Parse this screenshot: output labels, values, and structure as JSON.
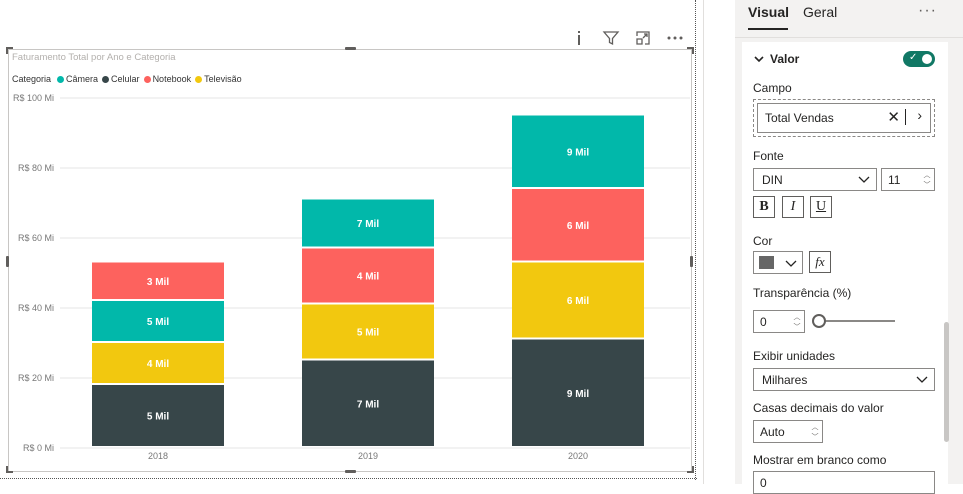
{
  "header_icons": [
    "info-icon",
    "filter-icon",
    "focus-mode-icon",
    "more-options-icon"
  ],
  "chart_data": {
    "type": "bar",
    "stacked": true,
    "title": "Faturamento Total por Ano e Categoria",
    "legend": {
      "title": "Categoria",
      "position": "top-left",
      "items": [
        {
          "name": "Câmera",
          "color": "#01B8AA"
        },
        {
          "name": "Celular",
          "color": "#374649"
        },
        {
          "name": "Notebook",
          "color": "#FD625E"
        },
        {
          "name": "Televisão",
          "color": "#F2C80F"
        }
      ]
    },
    "categories": [
      "2018",
      "2019",
      "2020"
    ],
    "stack_order": [
      "Celular",
      "Televisão",
      "Câmera",
      "Notebook"
    ],
    "series": [
      {
        "name": "Celular",
        "color": "#374649",
        "values": [
          18,
          25,
          31
        ],
        "labels": [
          "5 Mil",
          "7 Mil",
          "9 Mil"
        ]
      },
      {
        "name": "Televisão",
        "color": "#F2C80F",
        "values": [
          12,
          16,
          22
        ],
        "labels": [
          "4 Mil",
          "5 Mil",
          "6 Mil"
        ]
      },
      {
        "name": "Câmera",
        "color": "#01B8AA",
        "values": [
          12,
          14,
          21
        ],
        "labels": [
          "5 Mil",
          "",
          "9 Mil"
        ]
      },
      {
        "name": "Notebook",
        "color": "#FD625E",
        "values": [
          11,
          16,
          21
        ],
        "labels": [
          "3 Mil",
          "4 Mil",
          "6 Mil"
        ]
      }
    ],
    "order_overrides": {
      "2019": [
        "Celular",
        "Televisão",
        "Notebook",
        "Câmera"
      ],
      "2020": [
        "Celular",
        "Televisão",
        "Notebook",
        "Câmera"
      ]
    },
    "extra_labels": {
      "2019": {
        "Câmera": "7 Mil"
      }
    },
    "yticks": [
      "R$ 0 Mi",
      "R$ 20 Mi",
      "R$ 40 Mi",
      "R$ 60 Mi",
      "R$ 80 Mi",
      "R$ 100 Mi"
    ],
    "ylim": [
      0,
      100
    ],
    "grid": true
  },
  "pane": {
    "tabs": [
      {
        "label": "Visual"
      },
      {
        "label": "Geral"
      }
    ],
    "more": "···",
    "section": {
      "title": "Valor",
      "toggle_on": true
    },
    "campo_label": "Campo",
    "campo_value": "Total Vendas",
    "fonte_label": "Fonte",
    "font_family": "DIN",
    "font_size": "11",
    "bold": "B",
    "italic": "I",
    "underline": "U",
    "cor_label": "Cor",
    "cor_color": "#666666",
    "fx": "fx",
    "transparencia_label": "Transparência (%)",
    "transparencia_value": "0",
    "transparencia_level": 0,
    "exibir_label": "Exibir unidades",
    "exibir_value": "Milhares",
    "casas_label": "Casas decimais do valor",
    "casas_value": "Auto",
    "branco_label": "Mostrar em branco como",
    "branco_value": "0"
  }
}
